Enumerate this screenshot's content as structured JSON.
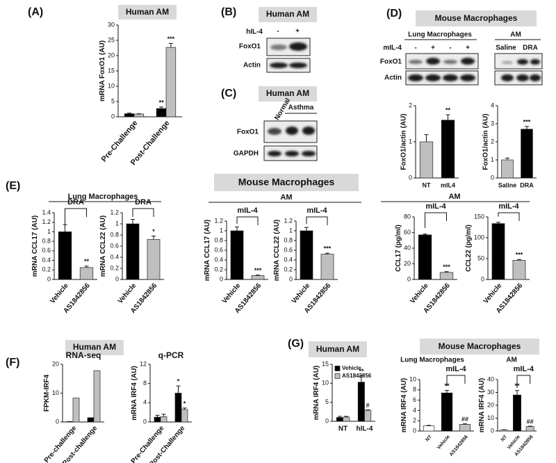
{
  "panel_labels": [
    "(A)",
    "(B)",
    "(C)",
    "(D)",
    "(E)",
    "(F)",
    "(G)"
  ],
  "headers": {
    "A": "Human AM",
    "B": "Human AM",
    "C": "Human AM",
    "D": "Mouse Macrophages",
    "E": "Mouse Macrophages",
    "F": "Human AM",
    "G1": "Human AM",
    "G2": "Mouse Macrophages"
  },
  "group_labels": {
    "D_lung": "Lung Macrophages",
    "D_am": "AM",
    "E_lung": "Lung Macrophages",
    "E_am1": "AM",
    "E_am2": "AM",
    "G_lung": "Lung Macrophages",
    "G_am": "AM"
  },
  "blots": {
    "B": {
      "treatment": "hIL-4",
      "lanes": [
        "-",
        "+"
      ],
      "rows": [
        "FoxO1",
        "Actin"
      ]
    },
    "C": {
      "lanes": [
        "Normal",
        "Asthma"
      ],
      "rows": [
        "FoxO1",
        "GAPDH"
      ]
    },
    "D": {
      "treatment": "mIL-4",
      "lanes": [
        "-",
        "+",
        "-",
        "+"
      ],
      "am_lanes": [
        "Saline",
        "DRA"
      ],
      "rows": [
        "FoxO1",
        "Actin"
      ]
    }
  },
  "chart_data": [
    {
      "type": "bar",
      "ylabel": "mRNA FoxO1 (AU)",
      "categories": [
        "Pre-Challenge",
        "Post-Challenge"
      ],
      "series": [
        {
          "color": "#000000",
          "values": [
            1.0,
            2.7
          ],
          "errors": [
            0.2,
            0.5
          ],
          "marks": [
            null,
            "**"
          ]
        },
        {
          "color": "#bfbfbf",
          "values": [
            0.9,
            22.7
          ],
          "errors": [
            0.1,
            1.3
          ],
          "marks": [
            null,
            "***"
          ]
        }
      ],
      "ylim": [
        0,
        30
      ],
      "yticks": [
        0,
        5,
        10,
        15,
        20,
        25,
        30
      ]
    },
    {
      "type": "bar",
      "ylabel": "FoxO1/actin (AU)",
      "categories": [
        "NT",
        "mIL4"
      ],
      "series": [
        {
          "colors": [
            "#bfbfbf",
            "#000000"
          ],
          "values": [
            1.0,
            1.6
          ],
          "errors": [
            0.2,
            0.15
          ],
          "marks": [
            null,
            "**"
          ]
        }
      ],
      "ylim": [
        0,
        2
      ],
      "yticks": [
        0,
        1,
        2
      ]
    },
    {
      "type": "bar",
      "ylabel": "FoxO1/actin (AU)",
      "categories": [
        "Saline",
        "DRA"
      ],
      "series": [
        {
          "colors": [
            "#bfbfbf",
            "#000000"
          ],
          "values": [
            1.0,
            2.7
          ],
          "errors": [
            0.1,
            0.15
          ],
          "marks": [
            null,
            "***"
          ]
        }
      ],
      "ylim": [
        0,
        4
      ],
      "yticks": [
        0,
        1,
        2,
        3,
        4
      ]
    },
    {
      "type": "bar",
      "ylabel": "mRNA CCL17 (AU)",
      "bracket": "DRA",
      "categories": [
        "Vehicle",
        "AS1842856"
      ],
      "series": [
        {
          "colors": [
            "#000000",
            "#bfbfbf"
          ],
          "values": [
            1.0,
            0.25
          ],
          "errors": [
            0.15,
            0.03
          ],
          "marks": [
            null,
            "**"
          ]
        }
      ],
      "ylim": [
        0,
        1.4
      ],
      "yticks": [
        0,
        0.2,
        0.4,
        0.6,
        0.8,
        1,
        1.2,
        1.4
      ]
    },
    {
      "type": "bar",
      "ylabel": "mRNA CCL22 (AU)",
      "bracket": "DRA",
      "categories": [
        "Vehicle",
        "AS1842856"
      ],
      "series": [
        {
          "colors": [
            "#000000",
            "#bfbfbf"
          ],
          "values": [
            1.0,
            0.72
          ],
          "errors": [
            0.08,
            0.06
          ],
          "marks": [
            null,
            "*"
          ]
        }
      ],
      "ylim": [
        0,
        1.2
      ],
      "yticks": [
        0,
        0.2,
        0.4,
        0.6,
        0.8,
        1,
        1.2
      ]
    },
    {
      "type": "bar",
      "ylabel": "mRNA CCL17 (AU)",
      "bracket": "mIL-4",
      "categories": [
        "Vehicle",
        "AS1842856"
      ],
      "series": [
        {
          "colors": [
            "#000000",
            "#bfbfbf"
          ],
          "values": [
            1.0,
            0.08
          ],
          "errors": [
            0.08,
            0.01
          ],
          "marks": [
            null,
            "***"
          ]
        }
      ],
      "ylim": [
        0,
        1.2
      ],
      "yticks": [
        0,
        0.2,
        0.4,
        0.6,
        0.8,
        1,
        1.2
      ]
    },
    {
      "type": "bar",
      "ylabel": "mRNA CCL22 (AU)",
      "bracket": "mIL-4",
      "categories": [
        "Vehicle",
        "AS1842856"
      ],
      "series": [
        {
          "colors": [
            "#000000",
            "#bfbfbf"
          ],
          "values": [
            1.0,
            0.52
          ],
          "errors": [
            0.07,
            0.02
          ],
          "marks": [
            null,
            "***"
          ]
        }
      ],
      "ylim": [
        0,
        1.2
      ],
      "yticks": [
        0,
        0.2,
        0.4,
        0.6,
        0.8,
        1,
        1.2
      ]
    },
    {
      "type": "bar",
      "ylabel": "CCL17 (pg/ml)",
      "bracket": "mIL-4",
      "categories": [
        "Vehicle",
        "AS1842856"
      ],
      "series": [
        {
          "colors": [
            "#000000",
            "#bfbfbf"
          ],
          "values": [
            57,
            9
          ],
          "errors": [
            1,
            1
          ],
          "marks": [
            null,
            "***"
          ]
        }
      ],
      "ylim": [
        0,
        80
      ],
      "yticks": [
        0,
        20,
        40,
        60,
        80
      ]
    },
    {
      "type": "bar",
      "ylabel": "CCL22 (pg/ml)",
      "bracket": "mIL-4",
      "categories": [
        "Vehicle",
        "AS1842856"
      ],
      "series": [
        {
          "colors": [
            "#000000",
            "#bfbfbf"
          ],
          "values": [
            134,
            46
          ],
          "errors": [
            3,
            2
          ],
          "marks": [
            null,
            "***"
          ]
        }
      ],
      "ylim": [
        0,
        150
      ],
      "yticks": [
        0,
        50,
        100,
        150
      ]
    },
    {
      "type": "bar",
      "title": "RNA-seq",
      "ylabel": "FPKM-IRF4",
      "categories": [
        "Pre-challenge",
        "Post-challenge"
      ],
      "series": [
        {
          "color": "#000000",
          "values": [
            0.2,
            1.5
          ]
        },
        {
          "color": "#bfbfbf",
          "values": [
            8.3,
            17.8
          ]
        }
      ],
      "ylim": [
        0,
        20
      ],
      "yticks": [
        0,
        10,
        20
      ]
    },
    {
      "type": "bar",
      "title": "q-PCR",
      "ylabel": "mRNA IRF4 (AU)",
      "categories": [
        "Pre-Challenge",
        "Post-Challenge"
      ],
      "series": [
        {
          "color": "#000000",
          "values": [
            1.0,
            6.0
          ],
          "errors": [
            0.4,
            1.5
          ],
          "marks": [
            null,
            "*"
          ]
        },
        {
          "color": "#bfbfbf",
          "values": [
            1.1,
            2.6
          ],
          "errors": [
            0.5,
            0.3
          ],
          "marks": [
            null,
            "*"
          ]
        }
      ],
      "ylim": [
        0,
        12
      ],
      "yticks": [
        0,
        4,
        8,
        12
      ]
    },
    {
      "type": "bar",
      "ylabel": "mRNA IRF4 (AU)",
      "categories": [
        "NT",
        "hIL-4"
      ],
      "legend": "top-left",
      "series": [
        {
          "name": "Vehicle",
          "color": "#000000",
          "values": [
            1.0,
            10.3
          ],
          "errors": [
            0.3,
            1.7
          ],
          "marks": [
            null,
            "**"
          ]
        },
        {
          "name": "AS1842856",
          "color": "#bfbfbf",
          "values": [
            1.1,
            2.9
          ],
          "errors": [
            0.2,
            0.1
          ],
          "marks": [
            null,
            "#"
          ]
        }
      ],
      "ylim": [
        0,
        15
      ],
      "yticks": [
        0,
        5,
        10,
        15
      ]
    },
    {
      "type": "bar",
      "ylabel": "mRNA IRF4 (AU)",
      "bracket": "mIL-4",
      "categories": [
        "NT",
        "Vehicle",
        "AS1842856"
      ],
      "series": [
        {
          "colors": [
            "#ffffff",
            "#000000",
            "#bfbfbf"
          ],
          "values": [
            1.0,
            7.4,
            1.3
          ],
          "errors": [
            0.1,
            0.5,
            0.1
          ],
          "marks": [
            null,
            "**",
            "##"
          ]
        }
      ],
      "ylim": [
        0,
        10
      ],
      "yticks": [
        0,
        2,
        4,
        6,
        8,
        10
      ]
    },
    {
      "type": "bar",
      "ylabel": "mRNA IRF4 (AU)",
      "bracket": "mIL-4",
      "categories": [
        "NT",
        "Vehicle",
        "AS1842856"
      ],
      "series": [
        {
          "colors": [
            "#ffffff",
            "#000000",
            "#bfbfbf"
          ],
          "values": [
            0.8,
            28,
            3.5
          ],
          "errors": [
            0.2,
            3.5,
            0.3
          ],
          "marks": [
            null,
            "**",
            "##"
          ]
        }
      ],
      "ylim": [
        0,
        40
      ],
      "yticks": [
        0,
        10,
        20,
        30,
        40
      ]
    }
  ]
}
